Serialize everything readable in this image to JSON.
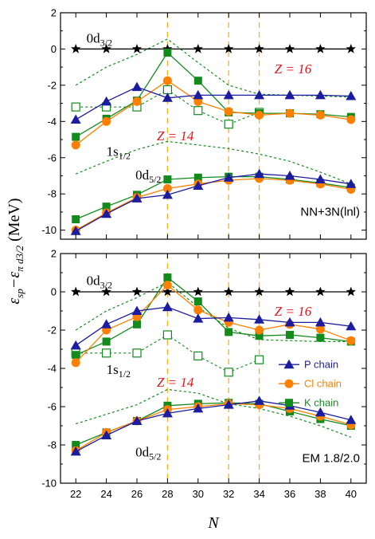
{
  "chart_data": {
    "type": "line",
    "ylabel_main": "ε",
    "ylabel_sub1": "sp",
    "ylabel_mid": "−ε",
    "ylabel_sub2": "π d3/2",
    "ylabel_unit": " (MeV)",
    "xlabel": "N",
    "x": [
      22,
      24,
      26,
      28,
      30,
      32,
      34,
      36,
      38,
      40
    ],
    "xticks": [
      "22",
      "24",
      "26",
      "28",
      "30",
      "32",
      "34",
      "36",
      "38",
      "40"
    ],
    "vlines": [
      28,
      32,
      34
    ],
    "colors": {
      "P": "#1c1c9e",
      "Cl": "#ff8000",
      "K": "#138a1c",
      "ref": "#000000",
      "dotted": "#138a1c",
      "vline": "#ffb020",
      "Z": "#e8141c"
    },
    "legend": [
      {
        "series": "P",
        "label": "P chain",
        "marker": "triangle"
      },
      {
        "series": "Cl",
        "label": "Cl chain",
        "marker": "circle"
      },
      {
        "series": "K",
        "label": "K chain",
        "marker": "square"
      }
    ],
    "panels": [
      {
        "label": "NN+3N(lnl)",
        "ylim": [
          -10.5,
          2
        ],
        "yticks": [
          2,
          0,
          -2,
          -4,
          -6,
          -8,
          -10
        ],
        "annotations": {
          "d32": {
            "main": "0d",
            "sub": "3/2",
            "x": 22.7,
            "y": 0.35
          },
          "s12": {
            "main": "1s",
            "sub": "1/2",
            "x": 24.0,
            "y": -5.9
          },
          "d52": {
            "main": "0d",
            "sub": "5/2",
            "x": 25.9,
            "y": -7.2
          },
          "z16": {
            "text": "Z = 16",
            "x": 35.0,
            "y": -1.35
          },
          "z14": {
            "text": "Z = 14",
            "x": 27.3,
            "y": -5.05
          }
        },
        "ref": [
          0,
          0,
          0,
          0,
          0,
          0,
          0,
          0,
          0,
          0
        ],
        "s12": {
          "P": [
            -3.9,
            -2.9,
            -2.1,
            -2.7,
            -2.55,
            -2.55,
            -2.55,
            -2.55,
            -2.55,
            -2.6
          ],
          "Cl": [
            -5.3,
            -4.0,
            -2.9,
            -1.75,
            -2.9,
            -3.45,
            -3.65,
            -3.55,
            -3.65,
            -3.9
          ],
          "K": [
            -4.85,
            -3.85,
            -2.85,
            -0.2,
            -1.75,
            -3.5,
            -3.55,
            -3.55,
            -3.6,
            -3.75
          ],
          "K_Z14_open": [
            -3.2,
            -3.2,
            -3.2,
            -2.25,
            -3.4,
            -4.15,
            -3.5
          ]
        },
        "d52": {
          "P": [
            -10.05,
            -9.1,
            -8.25,
            -8.05,
            -7.55,
            -7.1,
            -6.9,
            -7.0,
            -7.2,
            -7.45
          ],
          "Cl": [
            -10.0,
            -9.05,
            -8.2,
            -7.7,
            -7.45,
            -7.25,
            -7.15,
            -7.25,
            -7.45,
            -7.75
          ],
          "K": [
            -9.4,
            -8.7,
            -8.05,
            -7.2,
            -7.1,
            -7.05,
            -7.05,
            -7.2,
            -7.4,
            -7.65
          ]
        },
        "dotted": [
          [
            -2.0,
            -1.0,
            -0.3,
            0.55,
            -0.75,
            -2.0,
            -2.5,
            -2.55,
            -2.6,
            -2.65
          ],
          [
            -6.9,
            -6.2,
            -5.55,
            -5.1,
            -5.3,
            -5.5,
            -5.8,
            -6.2,
            -6.8,
            -7.45
          ]
        ]
      },
      {
        "label": "EM 1.8/2.0",
        "ylim": [
          -10,
          2
        ],
        "yticks": [
          2,
          0,
          -2,
          -4,
          -6,
          -8,
          -10
        ],
        "annotations": {
          "d32": {
            "main": "0d",
            "sub": "3/2",
            "x": 22.7,
            "y": 0.35
          },
          "s12": {
            "main": "1s",
            "sub": "1/2",
            "x": 24.0,
            "y": -4.3
          },
          "d52": {
            "main": "0d",
            "sub": "5/2",
            "x": 25.9,
            "y": -8.6
          },
          "z16": {
            "text": "Z = 16",
            "x": 35.0,
            "y": -1.25
          },
          "z14": {
            "text": "Z = 14",
            "x": 27.3,
            "y": -4.95
          }
        },
        "ref": [
          0,
          0,
          0,
          0,
          0,
          0,
          0,
          0,
          0,
          0
        ],
        "s12": {
          "P": [
            -2.8,
            -1.7,
            -1.0,
            -0.8,
            -1.4,
            -1.35,
            -1.45,
            -1.6,
            -1.6,
            -1.8
          ],
          "Cl": [
            -3.7,
            -2.0,
            -1.3,
            0.35,
            -0.95,
            -1.6,
            -2.0,
            -1.7,
            -1.95,
            -2.55
          ],
          "K": [
            -3.3,
            -2.6,
            -1.7,
            0.75,
            -0.5,
            -2.1,
            -2.3,
            -2.25,
            -2.4,
            -2.6
          ],
          "K_Z14_open": [
            -3.2,
            -3.2,
            -3.2,
            -2.25,
            -3.35,
            -4.2,
            -3.55
          ]
        },
        "d52": {
          "P": [
            -8.35,
            -7.5,
            -6.75,
            -6.35,
            -6.1,
            -5.9,
            -5.7,
            -5.95,
            -6.3,
            -6.7
          ],
          "Cl": [
            -8.3,
            -7.35,
            -6.75,
            -6.15,
            -6.0,
            -5.85,
            -5.9,
            -6.1,
            -6.5,
            -6.95
          ],
          "K": [
            -8.0,
            -7.35,
            -6.75,
            -5.95,
            -5.85,
            -5.8,
            -5.85,
            -6.25,
            -6.65,
            -7.0
          ]
        },
        "dotted": [
          [
            -2.0,
            -1.0,
            -0.3,
            0.5,
            -0.8,
            -1.9,
            -2.5,
            -2.55,
            -2.6,
            -2.6
          ],
          [
            -6.9,
            -6.4,
            -5.9,
            -5.1,
            -5.3,
            -5.85,
            -6.1,
            -6.5,
            -7.0,
            -7.6
          ]
        ]
      }
    ]
  }
}
